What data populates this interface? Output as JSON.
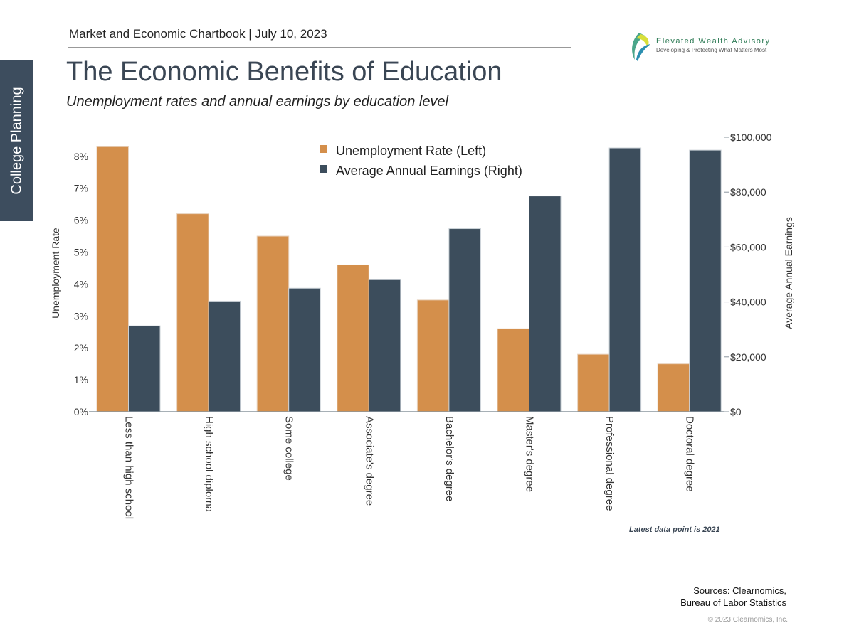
{
  "header": {
    "chartbook": "Market and Economic Chartbook | July 10, 2023",
    "title": "The Economic Benefits of Education",
    "subtitle": "Unemployment rates and annual earnings by education level",
    "side_tab": "College Planning"
  },
  "logo": {
    "name": "Elevated Wealth Advisory",
    "tagline": "Developing & Protecting What Matters Most"
  },
  "footer": {
    "note": "Latest data point is 2021",
    "sources_line1": "Sources: Clearnomics,",
    "sources_line2": "Bureau of Labor Statistics",
    "copyright": "© 2023 Clearnomics, Inc."
  },
  "chart_data": {
    "type": "bar",
    "categories": [
      "Less than high school",
      "High school diploma",
      "Some college",
      "Associate's degree",
      "Bachelor's degree",
      "Master's degree",
      "Professional degree",
      "Doctoral degree"
    ],
    "series": [
      {
        "name": "Unemployment Rate (Left)",
        "axis": "left",
        "color": "#d48f4b",
        "values": [
          8.3,
          6.2,
          5.5,
          4.6,
          3.5,
          2.6,
          1.8,
          1.5
        ]
      },
      {
        "name": "Average Annual Earnings (Right)",
        "axis": "right",
        "color": "#3c4d5c",
        "values": [
          31300,
          40300,
          45000,
          48100,
          66700,
          78600,
          96100,
          95300
        ]
      }
    ],
    "ylabel_left": "Unemployment Rate",
    "ylabel_right": "Average Annual Earnings",
    "ylim_left": [
      0,
      8.6
    ],
    "ylim_right": [
      0,
      100000
    ],
    "yticks_left": [
      "0%",
      "1%",
      "2%",
      "3%",
      "4%",
      "5%",
      "6%",
      "7%",
      "8%"
    ],
    "yticks_right": [
      "$0",
      "$20,000",
      "$40,000",
      "$60,000",
      "$80,000",
      "$100,000"
    ],
    "legend_placement": "top-center",
    "grid": false
  }
}
